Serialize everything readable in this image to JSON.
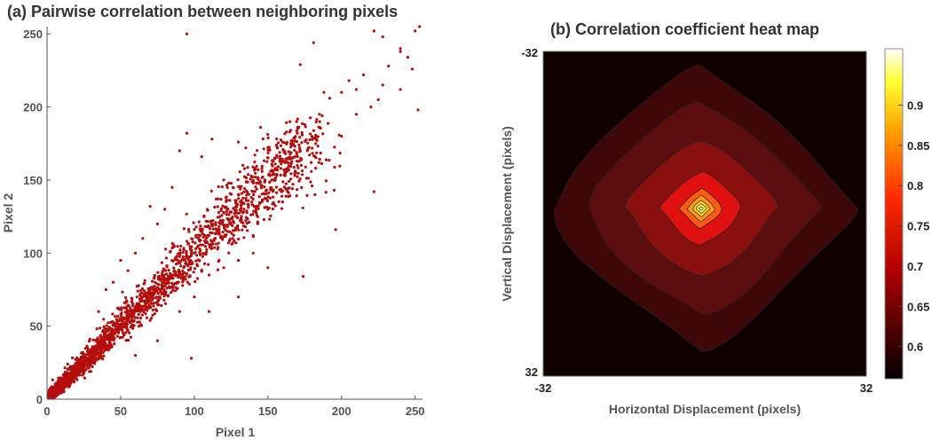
{
  "chart_data": [
    {
      "type": "scatter",
      "title": "(a) Pairwise correlation between neighboring pixels",
      "xlabel": "Pixel 1",
      "ylabel": "Pixel 2",
      "xlim": [
        0,
        255
      ],
      "ylim": [
        0,
        255
      ],
      "xticks": [
        0,
        50,
        100,
        150,
        200,
        250
      ],
      "yticks": [
        0,
        50,
        100,
        150,
        200,
        250
      ],
      "marker_color": "#b50d0d",
      "trend": "points concentrated near y = x, densest at low values",
      "points": [
        [
          95,
          250
        ],
        [
          222,
          252
        ],
        [
          228,
          248
        ],
        [
          250,
          252
        ],
        [
          253,
          255
        ],
        [
          181,
          244
        ],
        [
          172,
          229
        ],
        [
          240,
          238
        ],
        [
          232,
          228
        ],
        [
          245,
          234
        ],
        [
          248,
          226
        ],
        [
          240,
          212
        ],
        [
          252,
          198
        ],
        [
          228,
          215
        ],
        [
          240,
          240
        ],
        [
          222,
          142
        ],
        [
          196,
          116
        ],
        [
          174,
          84
        ],
        [
          95,
          182
        ],
        [
          112,
          178
        ],
        [
          90,
          170
        ],
        [
          105,
          166
        ],
        [
          130,
          176
        ],
        [
          135,
          172
        ],
        [
          145,
          186
        ],
        [
          160,
          176
        ],
        [
          165,
          190
        ],
        [
          188,
          210
        ],
        [
          192,
          206
        ],
        [
          200,
          210
        ],
        [
          205,
          218
        ],
        [
          210,
          212
        ],
        [
          215,
          222
        ],
        [
          185,
          195
        ],
        [
          175,
          188
        ],
        [
          170,
          182
        ],
        [
          162,
          168
        ],
        [
          155,
          158
        ],
        [
          148,
          150
        ],
        [
          140,
          142
        ],
        [
          132,
          136
        ],
        [
          125,
          128
        ],
        [
          118,
          120
        ],
        [
          110,
          112
        ],
        [
          102,
          104
        ],
        [
          180,
          146
        ],
        [
          182,
          140
        ],
        [
          195,
          143
        ],
        [
          140,
          112
        ],
        [
          130,
          95
        ],
        [
          60,
          100
        ],
        [
          55,
          88
        ],
        [
          75,
          120
        ],
        [
          80,
          130
        ],
        [
          70,
          132
        ],
        [
          85,
          145
        ],
        [
          120,
          150
        ],
        [
          150,
          130
        ],
        [
          160,
          135
        ],
        [
          110,
          85
        ],
        [
          100,
          70
        ],
        [
          90,
          60
        ],
        [
          98,
          28
        ],
        [
          130,
          70
        ],
        [
          150,
          90
        ],
        [
          200,
          180
        ],
        [
          210,
          195
        ],
        [
          220,
          200
        ],
        [
          225,
          205
        ],
        [
          170,
          160
        ],
        [
          40,
          75
        ],
        [
          45,
          80
        ],
        [
          35,
          60
        ],
        [
          50,
          95
        ],
        [
          65,
          110
        ],
        [
          120,
          90
        ],
        [
          110,
          60
        ],
        [
          140,
          100
        ],
        [
          60,
          30
        ],
        [
          75,
          40
        ]
      ],
      "dense_band": {
        "sd_base": 2,
        "sd_scale": 0.09,
        "count": 2600,
        "max": 180
      }
    },
    {
      "type": "heatmap",
      "title": "(b) Correlation coefficient heat map",
      "xlabel": "Horizontal Displacement (pixels)",
      "ylabel": "Vertical Displacement (pixels)",
      "xlim": [
        -32,
        32
      ],
      "ylim": [
        -32,
        32
      ],
      "xtick_labels": [
        "-32",
        "32"
      ],
      "ytick_labels": [
        "-32",
        "32"
      ],
      "zlim": [
        0.56,
        0.97
      ],
      "colorbar_ticks": [
        0.6,
        0.65,
        0.7,
        0.75,
        0.8,
        0.85,
        0.9
      ],
      "colorbar_tick_labels": [
        "0.6",
        "0.65",
        "0.7",
        "0.75",
        "0.8",
        "0.85",
        "0.9"
      ],
      "colormap": "hot",
      "contour_levels": [
        {
          "value": 0.56,
          "halfwidth": 32,
          "color": "#100000"
        },
        {
          "value": 0.6,
          "halfwidth": 30,
          "color": "#3f0808"
        },
        {
          "value": 0.62,
          "halfwidth": 23,
          "color": "#5c0e0e"
        },
        {
          "value": 0.65,
          "halfwidth": 15,
          "color": "#8a1010"
        },
        {
          "value": 0.69,
          "halfwidth": 8,
          "color": "#e01010"
        },
        {
          "value": 0.74,
          "halfwidth": 4.2,
          "color": "#ff5a10"
        },
        {
          "value": 0.79,
          "halfwidth": 2.7,
          "color": "#ff9a18"
        },
        {
          "value": 0.84,
          "halfwidth": 1.7,
          "color": "#ffd010"
        },
        {
          "value": 0.89,
          "halfwidth": 1.0,
          "color": "#ffff40"
        },
        {
          "value": 0.94,
          "halfwidth": 0.4,
          "color": "#ffffd8"
        }
      ]
    }
  ]
}
